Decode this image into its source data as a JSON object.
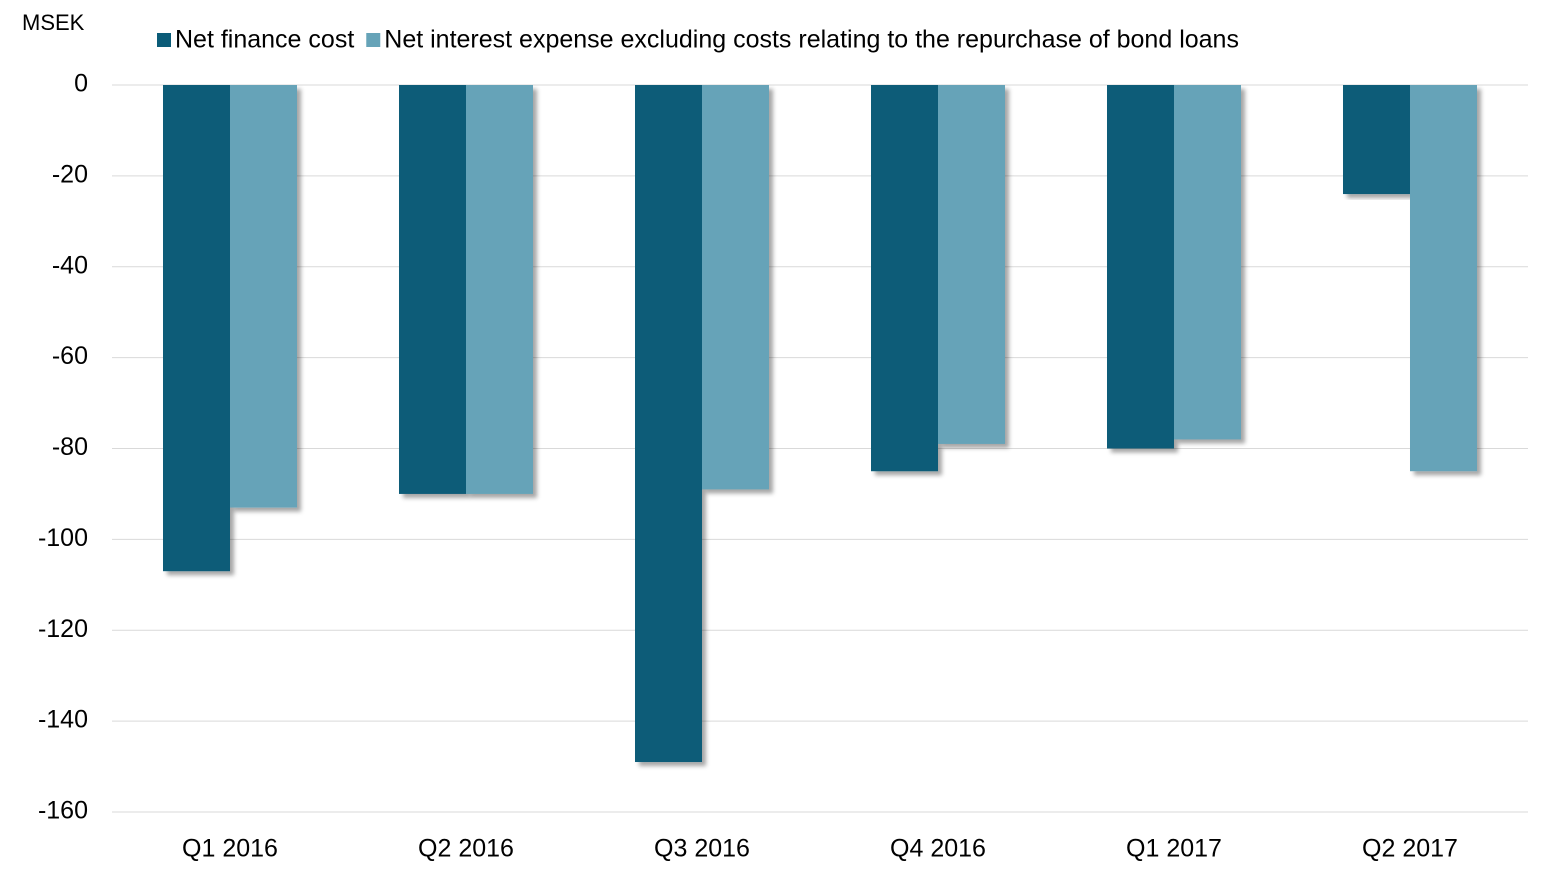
{
  "chart_data": {
    "type": "bar",
    "y_axis_label": "MSEK",
    "categories": [
      "Q1 2016",
      "Q2 2016",
      "Q3 2016",
      "Q4 2016",
      "Q1 2017",
      "Q2 2017"
    ],
    "series": [
      {
        "name": "Net finance cost",
        "color": "#0b5c78",
        "values": [
          -107,
          -90,
          -149,
          -85,
          -80,
          -24
        ]
      },
      {
        "name": "Net interest expense excluding costs relating to the repurchase of bond loans",
        "color": "#66a3b8",
        "values": [
          -93,
          -90,
          -89,
          -79,
          -78,
          -85
        ]
      }
    ],
    "ylim": [
      -160,
      0
    ],
    "yticks": [
      0,
      -20,
      -40,
      -60,
      -80,
      -100,
      -120,
      -140,
      -160
    ],
    "grid": true
  }
}
